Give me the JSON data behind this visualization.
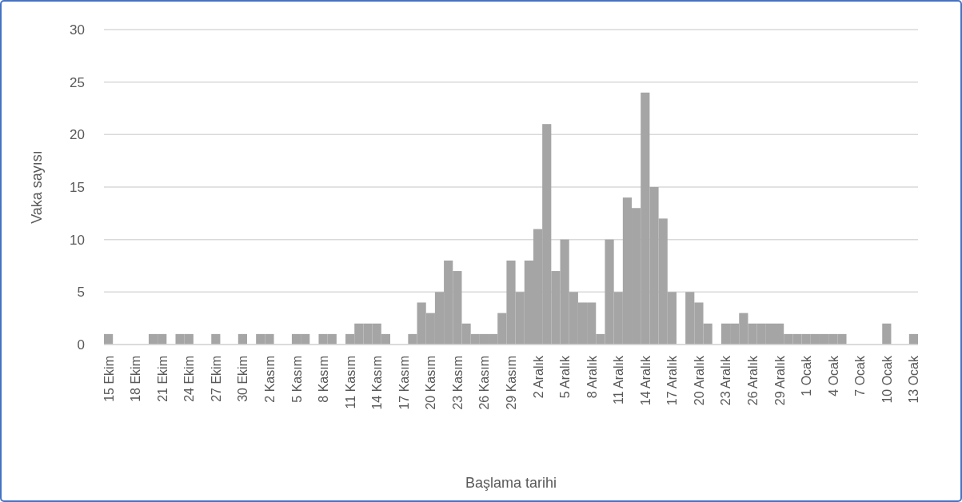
{
  "chart_data": {
    "type": "bar",
    "xlabel": "Başlama tarihi",
    "ylabel": "Vaka sayısı",
    "categories": [
      "15 Ekim",
      null,
      null,
      "18 Ekim",
      null,
      null,
      "21 Ekim",
      null,
      null,
      "24 Ekim",
      null,
      null,
      "27 Ekim",
      null,
      null,
      "30 Ekim",
      null,
      null,
      "2 Kasım",
      null,
      null,
      "5 Kasım",
      null,
      null,
      "8 Kasım",
      null,
      null,
      "11 Kasım",
      null,
      null,
      "14 Kasım",
      null,
      null,
      "17 Kasım",
      null,
      null,
      "20 Kasım",
      null,
      null,
      "23 Kasım",
      null,
      null,
      "26 Kasım",
      null,
      null,
      "29 Kasım",
      null,
      null,
      "2 Aralık",
      null,
      null,
      "5 Aralık",
      null,
      null,
      "8 Aralık",
      null,
      null,
      "11 Aralık",
      null,
      null,
      "14 Aralık",
      null,
      null,
      "17 Aralık",
      null,
      null,
      "20 Aralık",
      null,
      null,
      "23 Aralık",
      null,
      null,
      "26 Aralık",
      null,
      null,
      "29 Aralık",
      null,
      null,
      "1 Ocak",
      null,
      null,
      "4 Ocak",
      null,
      null,
      "7 Ocak",
      null,
      null,
      "10 Ocak",
      null,
      null,
      "13 Ocak"
    ],
    "values": [
      1,
      0,
      0,
      0,
      0,
      1,
      1,
      0,
      1,
      1,
      0,
      0,
      1,
      0,
      0,
      1,
      0,
      1,
      1,
      0,
      0,
      1,
      1,
      0,
      1,
      1,
      0,
      1,
      2,
      2,
      2,
      1,
      0,
      0,
      1,
      4,
      3,
      5,
      8,
      7,
      2,
      1,
      1,
      1,
      3,
      8,
      5,
      8,
      11,
      21,
      7,
      10,
      5,
      4,
      4,
      1,
      10,
      5,
      14,
      13,
      24,
      15,
      12,
      5,
      0,
      5,
      4,
      2,
      0,
      2,
      2,
      3,
      2,
      2,
      2,
      2,
      1,
      1,
      1,
      1,
      1,
      1,
      1,
      0,
      0,
      0,
      0,
      2,
      0,
      0,
      1
    ],
    "color": "#a5a5a5",
    "ylim": [
      0,
      30
    ],
    "yticks": [
      0,
      5,
      10,
      15,
      20,
      25,
      30
    ],
    "grid": "y"
  }
}
